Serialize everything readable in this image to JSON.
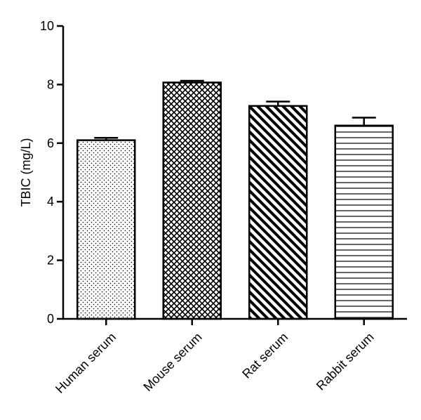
{
  "chart_data": {
    "type": "bar",
    "title": "",
    "xlabel": "",
    "ylabel": "TBIC  (mg/L)",
    "ylim": [
      0,
      10
    ],
    "yticks": [
      0,
      2,
      4,
      6,
      8,
      10
    ],
    "grid": false,
    "categories": [
      "Human serum",
      "Mouse serum",
      "Rat serum",
      "Rabbit serum"
    ],
    "values": [
      6.1,
      8.07,
      7.27,
      6.6
    ],
    "errors": [
      0.08,
      0.06,
      0.15,
      0.27
    ],
    "patterns": [
      "dots",
      "crosshatch",
      "diagonal-stripes",
      "horizontal-lines"
    ],
    "colors": {
      "bar_fill": "#ffffff",
      "stroke": "#000000"
    }
  }
}
